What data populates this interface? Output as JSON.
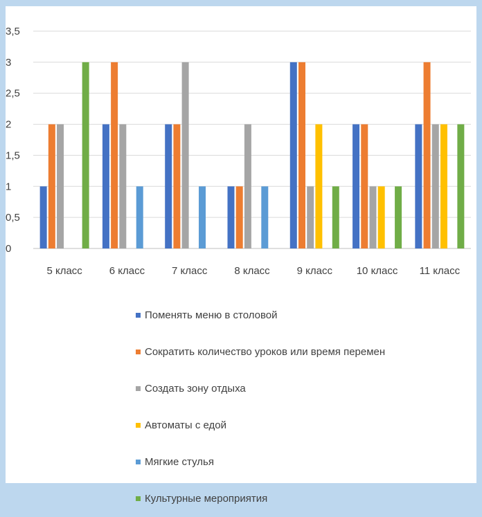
{
  "chart_data": {
    "type": "bar",
    "title": "",
    "xlabel": "",
    "ylabel": "",
    "ylim": [
      0,
      3.5
    ],
    "yticks": [
      "0",
      "0,5",
      "1",
      "1,5",
      "2",
      "2,5",
      "3",
      "3,5"
    ],
    "grid": true,
    "legend_position": "bottom",
    "categories": [
      "5 класс",
      "6 класс",
      "7 класс",
      "8 класс",
      "9 класс",
      "10 класс",
      "11 класс"
    ],
    "series": [
      {
        "name": "Поменять меню в столовой",
        "color": "#4472c4",
        "values": [
          1,
          2,
          2,
          1,
          3,
          2,
          2
        ]
      },
      {
        "name": "Сократить количество уроков или время перемен",
        "color": "#ed7d31",
        "values": [
          2,
          3,
          2,
          1,
          3,
          2,
          3
        ]
      },
      {
        "name": "Создать зону отдыха",
        "color": "#a5a5a5",
        "values": [
          2,
          2,
          3,
          2,
          1,
          1,
          2
        ]
      },
      {
        "name": "Автоматы с едой",
        "color": "#ffc000",
        "values": [
          0,
          0,
          0,
          0,
          2,
          1,
          2
        ]
      },
      {
        "name": "Мягкие стулья",
        "color": "#5b9bd5",
        "values": [
          0,
          1,
          1,
          1,
          0,
          0,
          0
        ]
      },
      {
        "name": "Культурные мероприятия",
        "color": "#70ad47",
        "values": [
          3,
          0,
          0,
          0,
          1,
          1,
          2
        ]
      }
    ]
  }
}
